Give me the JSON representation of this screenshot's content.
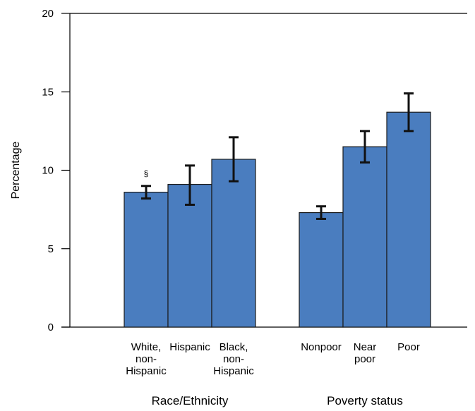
{
  "chart_data": {
    "type": "bar",
    "title": "",
    "xlabel": "",
    "ylabel": "Percentage",
    "ylim": [
      0,
      20
    ],
    "yticks": [
      0,
      5,
      10,
      15,
      20
    ],
    "grid": false,
    "error_bars": true,
    "bar_color": "#4a7dbf",
    "groups": [
      {
        "label": "Race/Ethnicity",
        "categories": [
          {
            "label": [
              "White,",
              "non-",
              "Hispanic"
            ],
            "value": 8.6,
            "ci_low": 8.2,
            "ci_high": 9.0,
            "annotation": "§"
          },
          {
            "label": [
              "Hispanic"
            ],
            "value": 9.1,
            "ci_low": 7.8,
            "ci_high": 10.3,
            "annotation": ""
          },
          {
            "label": [
              "Black,",
              "non-",
              "Hispanic"
            ],
            "value": 10.7,
            "ci_low": 9.3,
            "ci_high": 12.1,
            "annotation": ""
          }
        ]
      },
      {
        "label": "Poverty status",
        "categories": [
          {
            "label": [
              "Nonpoor"
            ],
            "value": 7.3,
            "ci_low": 6.9,
            "ci_high": 7.7,
            "annotation": ""
          },
          {
            "label": [
              "Near",
              "poor"
            ],
            "value": 11.5,
            "ci_low": 10.5,
            "ci_high": 12.5,
            "annotation": ""
          },
          {
            "label": [
              "Poor"
            ],
            "value": 13.7,
            "ci_low": 12.5,
            "ci_high": 14.9,
            "annotation": ""
          }
        ]
      }
    ]
  }
}
